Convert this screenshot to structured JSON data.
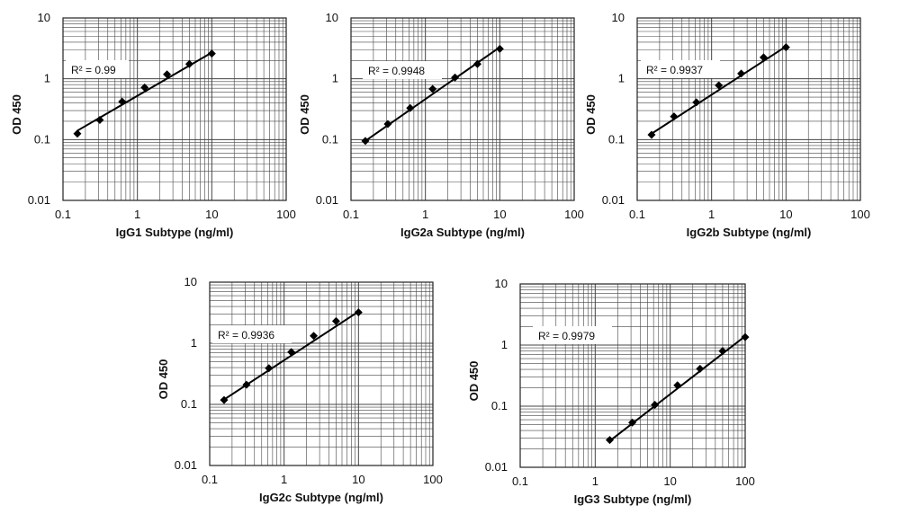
{
  "chart_data": [
    {
      "type": "scatter",
      "title": "",
      "xlabel": "IgG1 Subtype (ng/ml)",
      "ylabel": "OD 450",
      "xscale": "log",
      "yscale": "log",
      "xlim": [
        0.1,
        100
      ],
      "ylim": [
        0.01,
        10
      ],
      "x_ticks": [
        "0.1",
        "1",
        "10",
        "100"
      ],
      "y_ticks": [
        "0.01",
        "0.1",
        "1",
        "10"
      ],
      "grid": true,
      "annotation": "R² = 0.99",
      "series": [
        {
          "name": "IgG1",
          "x": [
            0.156,
            0.3125,
            0.625,
            1.25,
            2.5,
            5,
            10
          ],
          "y": [
            0.125,
            0.21,
            0.42,
            0.72,
            1.18,
            1.75,
            2.6
          ]
        }
      ],
      "trendline": {
        "x": [
          0.156,
          10
        ],
        "y": [
          0.14,
          2.7
        ]
      }
    },
    {
      "type": "scatter",
      "title": "",
      "xlabel": "IgG2a Subtype (ng/ml)",
      "ylabel": "OD 450",
      "xscale": "log",
      "yscale": "log",
      "xlim": [
        0.1,
        100
      ],
      "ylim": [
        0.01,
        10
      ],
      "x_ticks": [
        "0.1",
        "1",
        "10",
        "100"
      ],
      "y_ticks": [
        "0.01",
        "0.1",
        "1",
        "10"
      ],
      "grid": true,
      "annotation": "R² = 0.9948",
      "series": [
        {
          "name": "IgG2a",
          "x": [
            0.156,
            0.3125,
            0.625,
            1.25,
            2.5,
            5,
            10
          ],
          "y": [
            0.095,
            0.18,
            0.33,
            0.68,
            1.05,
            1.75,
            3.1
          ]
        }
      ],
      "trendline": {
        "x": [
          0.156,
          10
        ],
        "y": [
          0.095,
          3.3
        ]
      }
    },
    {
      "type": "scatter",
      "title": "",
      "xlabel": "IgG2b Subtype (ng/ml)",
      "ylabel": "OD 450",
      "xscale": "log",
      "yscale": "log",
      "xlim": [
        0.1,
        100
      ],
      "ylim": [
        0.01,
        10
      ],
      "x_ticks": [
        "0.1",
        "1",
        "10",
        "100"
      ],
      "y_ticks": [
        "0.01",
        "0.1",
        "1",
        "10"
      ],
      "grid": true,
      "annotation": "R² = 0.9937",
      "series": [
        {
          "name": "IgG2b",
          "x": [
            0.156,
            0.3125,
            0.625,
            1.25,
            2.5,
            5,
            10
          ],
          "y": [
            0.12,
            0.24,
            0.41,
            0.78,
            1.22,
            2.25,
            3.3
          ]
        }
      ],
      "trendline": {
        "x": [
          0.156,
          10
        ],
        "y": [
          0.125,
          3.4
        ]
      }
    },
    {
      "type": "scatter",
      "title": "",
      "xlabel": "IgG2c Subtype (ng/ml)",
      "ylabel": "OD 450",
      "xscale": "log",
      "yscale": "log",
      "xlim": [
        0.1,
        100
      ],
      "ylim": [
        0.01,
        10
      ],
      "x_ticks": [
        "0.1",
        "1",
        "10",
        "100"
      ],
      "y_ticks": [
        "0.01",
        "0.1",
        "1",
        "10"
      ],
      "grid": true,
      "annotation": "R² = 0.9936",
      "series": [
        {
          "name": "IgG2c",
          "x": [
            0.156,
            0.3125,
            0.625,
            1.25,
            2.5,
            5,
            10
          ],
          "y": [
            0.118,
            0.21,
            0.39,
            0.72,
            1.32,
            2.3,
            3.2
          ]
        }
      ],
      "trendline": {
        "x": [
          0.156,
          10
        ],
        "y": [
          0.12,
          3.3
        ]
      }
    },
    {
      "type": "scatter",
      "title": "",
      "xlabel": "IgG3 Subtype (ng/ml)",
      "ylabel": "OD 450",
      "xscale": "log",
      "yscale": "log",
      "xlim": [
        0.1,
        100
      ],
      "ylim": [
        0.01,
        10
      ],
      "x_ticks": [
        "0.1",
        "1",
        "10",
        "100"
      ],
      "y_ticks": [
        "0.01",
        "0.1",
        "1",
        "10"
      ],
      "grid": true,
      "annotation": "R² = 0.9979",
      "series": [
        {
          "name": "IgG3",
          "x": [
            1.5625,
            3.125,
            6.25,
            12.5,
            25,
            50,
            100
          ],
          "y": [
            0.028,
            0.054,
            0.105,
            0.22,
            0.41,
            0.8,
            1.35
          ]
        }
      ],
      "trendline": {
        "x": [
          1.5625,
          100
        ],
        "y": [
          0.027,
          1.4
        ]
      }
    }
  ]
}
